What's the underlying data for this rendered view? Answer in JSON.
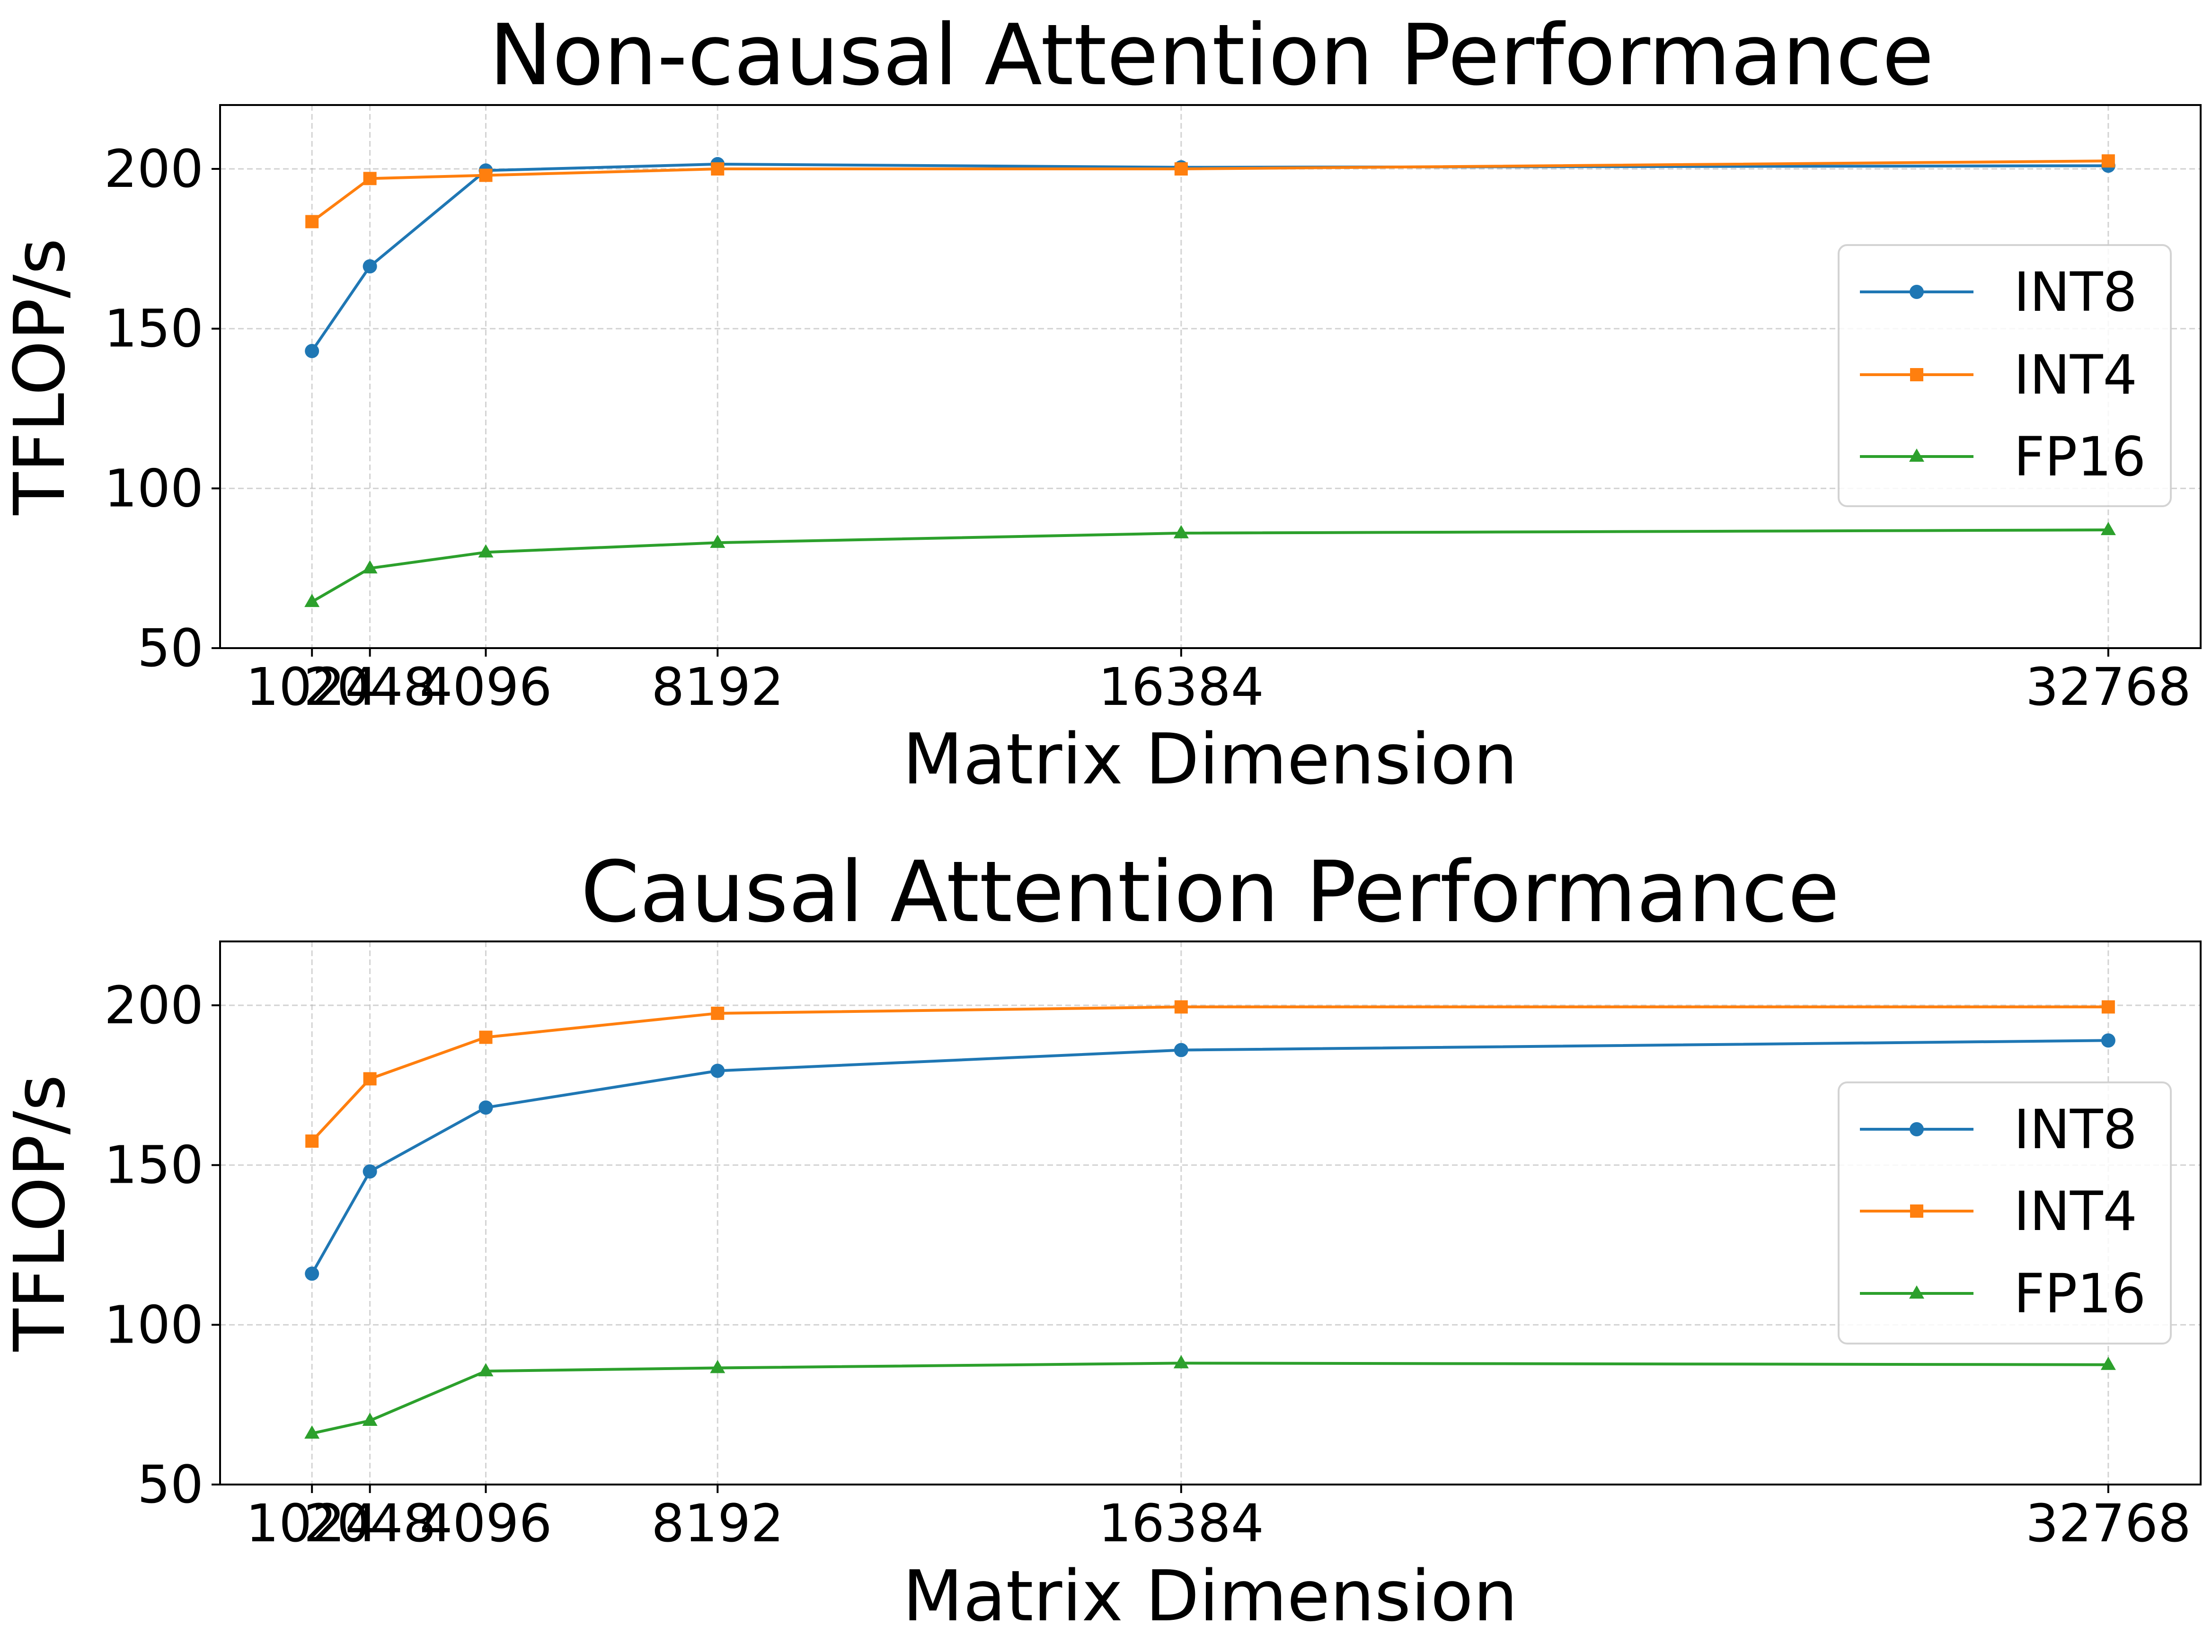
{
  "chart_data": [
    {
      "type": "line",
      "title": "Non-causal Attention Performance",
      "xlabel": "Matrix Dimension",
      "ylabel": "TFLOP/s",
      "x": [
        1024,
        2048,
        4096,
        8192,
        16384,
        32768
      ],
      "x_tick_labels": [
        "1024",
        "2048",
        "4096",
        "8192",
        "16384",
        "32768"
      ],
      "xlim": [
        -600,
        34400
      ],
      "ylim": [
        50,
        220
      ],
      "y_ticks": [
        50,
        100,
        150,
        200
      ],
      "y_tick_labels": [
        "50",
        "100",
        "150",
        "200"
      ],
      "grid": true,
      "legend_position": "center-right",
      "series": [
        {
          "name": "INT8",
          "color": "#1f77b4",
          "marker": "circle",
          "values": [
            143,
            169.5,
            199.5,
            201.5,
            200.5,
            201
          ]
        },
        {
          "name": "INT4",
          "color": "#ff7f0e",
          "marker": "square",
          "values": [
            183.5,
            197,
            198,
            200,
            200,
            202.5
          ]
        },
        {
          "name": "FP16",
          "color": "#2ca02c",
          "marker": "triangle",
          "values": [
            64.5,
            75,
            80,
            83,
            86,
            87
          ]
        }
      ]
    },
    {
      "type": "line",
      "title": "Causal Attention Performance",
      "xlabel": "Matrix Dimension",
      "ylabel": "TFLOP/s",
      "x": [
        1024,
        2048,
        4096,
        8192,
        16384,
        32768
      ],
      "x_tick_labels": [
        "1024",
        "2048",
        "4096",
        "8192",
        "16384",
        "32768"
      ],
      "xlim": [
        -600,
        34400
      ],
      "ylim": [
        50,
        220
      ],
      "y_ticks": [
        50,
        100,
        150,
        200
      ],
      "y_tick_labels": [
        "50",
        "100",
        "150",
        "200"
      ],
      "grid": true,
      "legend_position": "center-right",
      "series": [
        {
          "name": "INT8",
          "color": "#1f77b4",
          "marker": "circle",
          "values": [
            116,
            148,
            168,
            179.5,
            186,
            189
          ]
        },
        {
          "name": "INT4",
          "color": "#ff7f0e",
          "marker": "square",
          "values": [
            157.5,
            177,
            190,
            197.5,
            199.5,
            199.5
          ]
        },
        {
          "name": "FP16",
          "color": "#2ca02c",
          "marker": "triangle",
          "values": [
            66,
            70,
            85.5,
            86.5,
            88,
            87.5
          ]
        }
      ]
    }
  ]
}
